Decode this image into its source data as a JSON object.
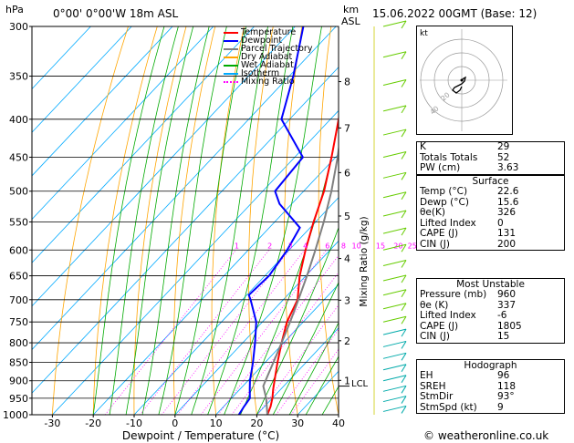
{
  "header": {
    "hpa_label": "hPa",
    "location": "0°00'  0°00'W  18m  ASL",
    "km_label": "km",
    "asl_label": "ASL",
    "datetime": "15.06.2022  00GMT  (Base: 12)"
  },
  "axes": {
    "xlabel": "Dewpoint / Temperature (°C)",
    "ylabel_right": "Mixing Ratio (g/kg)",
    "lcl_label": "LCL",
    "x_ticks": [
      "-30",
      "-20",
      "-10",
      "0",
      "10",
      "20",
      "30",
      "40"
    ],
    "p_ticks": [
      "300",
      "350",
      "400",
      "450",
      "500",
      "550",
      "600",
      "650",
      "700",
      "750",
      "800",
      "850",
      "900",
      "950",
      "1000"
    ],
    "km_ticks": [
      "8",
      "7",
      "6",
      "5",
      "4",
      "3",
      "2",
      "1"
    ],
    "mixing_ratio_labels": [
      "1",
      "2",
      "3",
      "4",
      "6",
      "8",
      "10",
      "15",
      "20",
      "25"
    ]
  },
  "legend": [
    {
      "label": "Temperature",
      "color": "#ff0000",
      "style": "solid"
    },
    {
      "label": "Dewpoint",
      "color": "#0000ff",
      "style": "solid"
    },
    {
      "label": "Parcel Trajectory",
      "color": "#808080",
      "style": "solid"
    },
    {
      "label": "Dry Adiabat",
      "color": "#ffa500",
      "style": "solid"
    },
    {
      "label": "Wet Adiabat",
      "color": "#00aa00",
      "style": "solid"
    },
    {
      "label": "Isotherm",
      "color": "#00aaff",
      "style": "solid"
    },
    {
      "label": "Mixing Ratio",
      "color": "#ff00ff",
      "style": "dotted"
    }
  ],
  "hodograph": {
    "unit_label": "kt",
    "ring_labels": [
      "20",
      "40"
    ]
  },
  "indices": [
    {
      "key": "K",
      "value": "29"
    },
    {
      "key": "Totals Totals",
      "value": "52"
    },
    {
      "key": "PW (cm)",
      "value": "3.63"
    }
  ],
  "surface": {
    "title": "Surface",
    "rows": [
      {
        "key": "Temp (°C)",
        "value": "22.6"
      },
      {
        "key": "Dewp (°C)",
        "value": "15.6"
      },
      {
        "key": "θe(K)",
        "value": "326"
      },
      {
        "key": "Lifted Index",
        "value": "0"
      },
      {
        "key": "CAPE (J)",
        "value": "131"
      },
      {
        "key": "CIN (J)",
        "value": "200"
      }
    ]
  },
  "most_unstable": {
    "title": "Most Unstable",
    "rows": [
      {
        "key": "Pressure (mb)",
        "value": "960"
      },
      {
        "key": "θe (K)",
        "value": "337"
      },
      {
        "key": "Lifted Index",
        "value": "-6"
      },
      {
        "key": "CAPE (J)",
        "value": "1805"
      },
      {
        "key": "CIN (J)",
        "value": "15"
      }
    ]
  },
  "hodograph_table": {
    "title": "Hodograph",
    "rows": [
      {
        "key": "EH",
        "value": "96"
      },
      {
        "key": "SREH",
        "value": "118"
      },
      {
        "key": "StmDir",
        "value": "93°"
      },
      {
        "key": "StmSpd (kt)",
        "value": "9"
      }
    ]
  },
  "footer": {
    "credit": "© weatheronline.co.uk"
  },
  "chart_data": {
    "type": "line",
    "x_unit": "°C",
    "y_unit": "hPa",
    "xlim": [
      -35,
      40
    ],
    "ylim": [
      1000,
      300
    ],
    "y_scale": "log",
    "lcl_pressure": 915,
    "series": [
      {
        "name": "Temperature",
        "color": "#ff0000",
        "pressure": [
          1000,
          975,
          950,
          925,
          900,
          850,
          800,
          750,
          700,
          650,
          600,
          550,
          500,
          450,
          400,
          350,
          300
        ],
        "values": [
          22.6,
          21.5,
          20.0,
          18.2,
          16.5,
          13.0,
          9.5,
          6.0,
          3.5,
          -1.5,
          -6.0,
          -10.5,
          -15.0,
          -21.0,
          -28.0,
          -36.0,
          -45.0
        ]
      },
      {
        "name": "Dewpoint",
        "color": "#0000ff",
        "pressure": [
          1000,
          975,
          950,
          925,
          900,
          850,
          800,
          750,
          700,
          690,
          650,
          600,
          560,
          520,
          500,
          450,
          400,
          350,
          300
        ],
        "values": [
          15.6,
          15.0,
          14.5,
          12.5,
          10.5,
          7.0,
          3.0,
          -1.5,
          -8.0,
          -9.5,
          -9.0,
          -10.5,
          -12.5,
          -23.0,
          -27.0,
          -28.0,
          -42.0,
          -49.0,
          -58.0
        ]
      },
      {
        "name": "Parcel Trajectory",
        "color": "#808080",
        "pressure": [
          1000,
          950,
          915,
          900,
          850,
          800,
          750,
          700,
          650,
          600,
          550,
          500,
          450,
          400,
          350,
          300
        ],
        "values": [
          22.6,
          18.5,
          15.0,
          14.3,
          12.0,
          9.5,
          6.8,
          3.7,
          0.3,
          -3.6,
          -8.0,
          -13.2,
          -19.5,
          -27.0,
          -36.0,
          -47.0
        ]
      }
    ]
  }
}
